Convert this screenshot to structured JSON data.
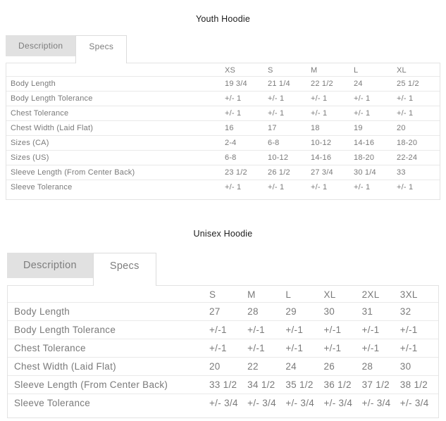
{
  "colors": {
    "title_text": "#1c1c1c",
    "table_text": "#7a7a7a",
    "tab_inactive_bg": "#e1e1e1",
    "tab_text": "#7d7d7d",
    "border": "#e3e3e3",
    "row_divider": "#e9e9e9"
  },
  "sections": [
    {
      "title": "Youth Hoodie",
      "tabs": [
        {
          "label": "Description",
          "active": false
        },
        {
          "label": "Specs",
          "active": true
        }
      ],
      "columns": [
        "XS",
        "S",
        "M",
        "L",
        "XL"
      ],
      "rows": [
        {
          "label": "Body Length",
          "values": [
            "19 3/4",
            "21 1/4",
            "22 1/2",
            "24",
            "25 1/2"
          ]
        },
        {
          "label": "Body Length Tolerance",
          "values": [
            "+/- 1",
            "+/- 1",
            "+/- 1",
            "+/- 1",
            "+/- 1"
          ]
        },
        {
          "label": "Chest Tolerance",
          "values": [
            "+/- 1",
            "+/- 1",
            "+/- 1",
            "+/- 1",
            "+/- 1"
          ]
        },
        {
          "label": "Chest Width (Laid Flat)",
          "values": [
            "16",
            "17",
            "18",
            "19",
            "20"
          ]
        },
        {
          "label": "Sizes (CA)",
          "values": [
            "2-4",
            "6-8",
            "10-12",
            "14-16",
            "18-20"
          ]
        },
        {
          "label": "Sizes (US)",
          "values": [
            "6-8",
            "10-12",
            "14-16",
            "18-20",
            "22-24"
          ]
        },
        {
          "label": "Sleeve Length (From Center Back)",
          "values": [
            "23 1/2",
            "26 1/2",
            "27 3/4",
            "30 1/4",
            "33"
          ]
        },
        {
          "label": "Sleeve Tolerance",
          "values": [
            "+/- 1",
            "+/- 1",
            "+/- 1",
            "+/- 1",
            "+/- 1"
          ]
        }
      ]
    },
    {
      "title": "Unisex Hoodie",
      "tabs": [
        {
          "label": "Description",
          "active": false
        },
        {
          "label": "Specs",
          "active": true
        }
      ],
      "columns": [
        "S",
        "M",
        "L",
        "XL",
        "2XL",
        "3XL"
      ],
      "rows": [
        {
          "label": "Body Length",
          "values": [
            "27",
            "28",
            "29",
            "30",
            "31",
            "32"
          ]
        },
        {
          "label": "Body Length Tolerance",
          "values": [
            "+/-1",
            "+/-1",
            "+/-1",
            "+/-1",
            "+/-1",
            "+/-1"
          ]
        },
        {
          "label": "Chest Tolerance",
          "values": [
            "+/-1",
            "+/-1",
            "+/-1",
            "+/-1",
            "+/-1",
            "+/-1"
          ]
        },
        {
          "label": "Chest Width (Laid Flat)",
          "values": [
            "20",
            "22",
            "24",
            "26",
            "28",
            "30"
          ]
        },
        {
          "label": "Sleeve Length (From Center Back)",
          "values": [
            "33 1/2",
            "34 1/2",
            "35 1/2",
            "36 1/2",
            "37 1/2",
            "38 1/2"
          ]
        },
        {
          "label": "Sleeve Tolerance",
          "values": [
            "+/- 3/4",
            "+/- 3/4",
            "+/- 3/4",
            "+/- 3/4",
            "+/- 3/4",
            "+/- 3/4"
          ]
        }
      ]
    }
  ]
}
